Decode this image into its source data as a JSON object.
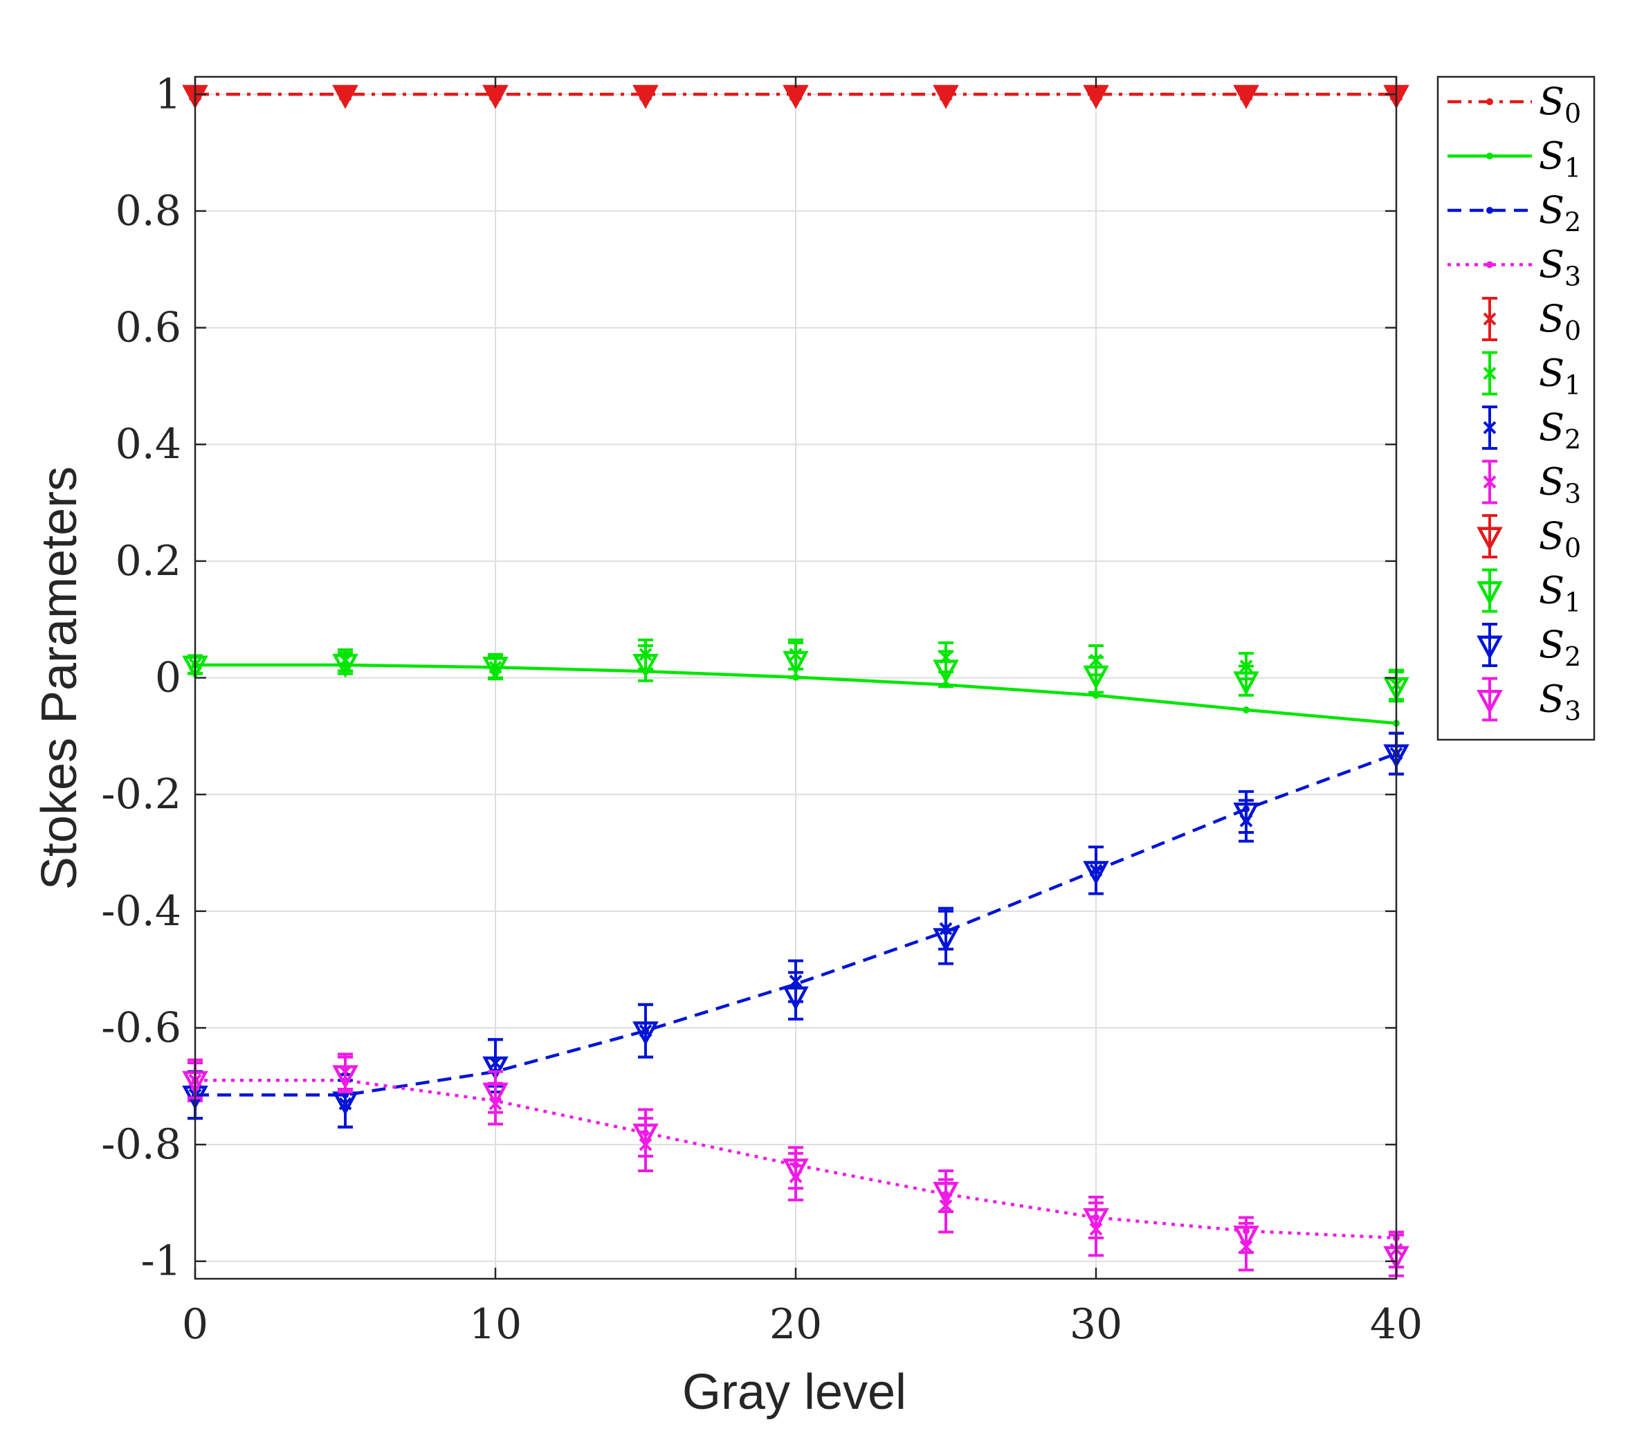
{
  "chart_data": {
    "type": "line",
    "xlabel": "Gray level",
    "ylabel": "Stokes Parameters",
    "xlim": [
      0,
      40
    ],
    "ylim": [
      -1.03,
      1.03
    ],
    "xticks": [
      0,
      10,
      20,
      30,
      40
    ],
    "yticks": [
      1,
      0.8,
      0.6,
      0.4,
      0.2,
      0,
      -0.2,
      -0.4,
      -0.6,
      -0.8,
      -1
    ],
    "ytick_labels": [
      "1",
      "0.8",
      "0.6",
      "0.4",
      "0.2",
      "0",
      "-0.2",
      "-0.4",
      "-0.6",
      "-0.8",
      "-1"
    ],
    "xtick_labels": [
      "0",
      "10",
      "20",
      "30",
      "40"
    ],
    "grid": true,
    "legend_position": "outside-right-top",
    "x": [
      0,
      5,
      10,
      15,
      20,
      25,
      30,
      35,
      40
    ],
    "series": [
      {
        "name": "S0",
        "subscript": "0",
        "kind": "fit",
        "color": "#e41a1c",
        "dash": "dashdot",
        "values": [
          1,
          1,
          1,
          1,
          1,
          1,
          1,
          1,
          1
        ]
      },
      {
        "name": "S1",
        "subscript": "1",
        "kind": "fit",
        "color": "#00e600",
        "dash": "solid",
        "values": [
          0.022,
          0.022,
          0.018,
          0.011,
          0.001,
          -0.012,
          -0.03,
          -0.055,
          -0.078
        ]
      },
      {
        "name": "S2",
        "subscript": "2",
        "kind": "fit",
        "color": "#0014d6",
        "dash": "dashed",
        "values": [
          -0.715,
          -0.715,
          -0.675,
          -0.605,
          -0.525,
          -0.435,
          -0.33,
          -0.225,
          -0.13
        ]
      },
      {
        "name": "S3",
        "subscript": "3",
        "kind": "fit",
        "color": "#f01ae6",
        "dash": "dotted",
        "values": [
          -0.69,
          -0.69,
          -0.725,
          -0.78,
          -0.835,
          -0.885,
          -0.925,
          -0.948,
          -0.96
        ]
      },
      {
        "name": "S0",
        "subscript": "0",
        "kind": "errorbar-x",
        "color": "#e41a1c",
        "values": [
          1,
          1,
          1,
          1,
          1,
          1,
          1,
          1,
          1
        ],
        "errors": [
          0,
          0,
          0,
          0,
          0,
          0,
          0,
          0,
          0
        ]
      },
      {
        "name": "S1",
        "subscript": "1",
        "kind": "errorbar-x",
        "color": "#00e600",
        "values": [
          0.023,
          0.03,
          0.018,
          0.04,
          0.04,
          0.035,
          0.03,
          0.02,
          -0.012
        ],
        "errors": [
          0.015,
          0.018,
          0.02,
          0.025,
          0.025,
          0.025,
          0.025,
          0.022,
          0.025
        ]
      },
      {
        "name": "S2",
        "subscript": "2",
        "kind": "errorbar-x",
        "color": "#0014d6",
        "values": [
          -0.715,
          -0.73,
          -0.66,
          -0.605,
          -0.52,
          -0.43,
          -0.33,
          -0.245,
          -0.13
        ],
        "errors": [
          0.04,
          0.04,
          0.04,
          0.045,
          0.035,
          0.035,
          0.04,
          0.035,
          0.035
        ]
      },
      {
        "name": "S3",
        "subscript": "3",
        "kind": "errorbar-x",
        "color": "#f01ae6",
        "values": [
          -0.69,
          -0.675,
          -0.73,
          -0.8,
          -0.855,
          -0.905,
          -0.945,
          -0.975,
          -0.98
        ],
        "errors": [
          0.035,
          0.03,
          0.035,
          0.045,
          0.04,
          0.045,
          0.045,
          0.04,
          0.03
        ]
      },
      {
        "name": "S0",
        "subscript": "0",
        "kind": "errorbar-tri",
        "color": "#e41a1c",
        "values": [
          1,
          1,
          1,
          1,
          1,
          1,
          1,
          1,
          1
        ],
        "errors": [
          0,
          0,
          0,
          0,
          0,
          0,
          0,
          0,
          0
        ]
      },
      {
        "name": "S1",
        "subscript": "1",
        "kind": "errorbar-tri",
        "color": "#00e600",
        "values": [
          0.022,
          0.025,
          0.02,
          0.025,
          0.03,
          0.015,
          0.005,
          -0.005,
          -0.015
        ],
        "errors": [
          0.015,
          0.018,
          0.02,
          0.03,
          0.03,
          0.03,
          0.03,
          0.025,
          0.025
        ]
      },
      {
        "name": "S2",
        "subscript": "2",
        "kind": "errorbar-tri",
        "color": "#0014d6",
        "values": [
          -0.715,
          -0.725,
          -0.665,
          -0.605,
          -0.545,
          -0.445,
          -0.33,
          -0.23,
          -0.13
        ],
        "errors": [
          0.04,
          0.045,
          0.045,
          0.045,
          0.04,
          0.045,
          0.04,
          0.035,
          0.035
        ]
      },
      {
        "name": "S3",
        "subscript": "3",
        "kind": "errorbar-tri",
        "color": "#f01ae6",
        "values": [
          -0.69,
          -0.68,
          -0.71,
          -0.78,
          -0.84,
          -0.88,
          -0.925,
          -0.955,
          -0.99
        ],
        "errors": [
          0.03,
          0.03,
          0.035,
          0.04,
          0.035,
          0.035,
          0.035,
          0.03,
          0.035
        ]
      }
    ]
  }
}
